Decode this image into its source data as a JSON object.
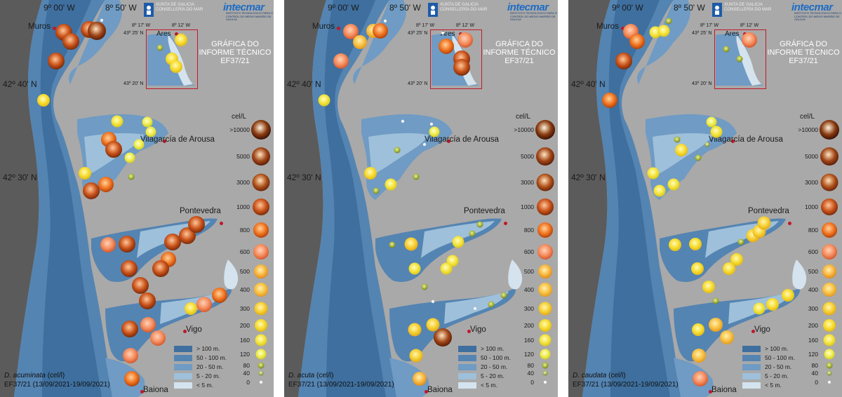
{
  "common": {
    "lon_labels": [
      "9º 00' W",
      "8º 50' W"
    ],
    "lat_labels": [
      "42º 40' N",
      "42º 30' N"
    ],
    "inset_labels": {
      "lon": "8º 17' W",
      "lon2": "8º 12' W",
      "lat_top": "43º 25' N",
      "lat_bottom": "43º 20' N",
      "town": "Ares"
    },
    "towns": [
      "Muros",
      "Vilagarcía de Arousa",
      "Pontevedra",
      "Vigo",
      "Baiona"
    ],
    "title_lines": [
      "GRÁFICA DO",
      "INFORME TÉCNICO",
      "EF37/21"
    ],
    "xunta_lines": [
      "XUNTA DE GALICIA",
      "CONSELLERÍA DO MAR"
    ],
    "intecmar_name": "intecmar",
    "intecmar_sub": "INSTITUTO TECNOLÓXICO PARA O CONTROL DO MEDIO MARIÑO DE GALICIA",
    "legend_unit": "cel/L",
    "legend_levels": [
      ">10000",
      "5000",
      "3000",
      "1000",
      "800",
      "600",
      "500",
      "400",
      "300",
      "200",
      "160",
      "120",
      "80",
      "40",
      "0"
    ],
    "depth_legend": [
      "> 100 m.",
      "50 - 100 m.",
      "20 - 50 m.",
      "5 - 20 m.",
      "< 5 m."
    ],
    "campaign": "EF37/21 (13/09/2021-19/09/2021)",
    "unit_suffix": " (cel/l)",
    "colors": {
      "land": "#a9a9a9",
      "ocean_deep": "#5b5b5b",
      "depth": [
        "#3e6f9e",
        "#5484b2",
        "#6f9bc4",
        "#9ec0da",
        "#d4e3ee"
      ],
      "town_dot": "#c0182a"
    }
  },
  "panels": [
    {
      "species": "D. acuminata",
      "id": "acuminata"
    },
    {
      "species": "D. acuta",
      "id": "acuta"
    },
    {
      "species": "D. caudata",
      "id": "caudata"
    }
  ]
}
